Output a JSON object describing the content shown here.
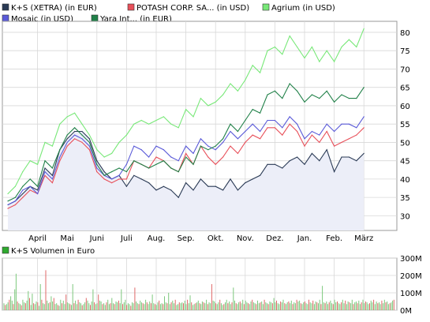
{
  "colors": {
    "background": "#ffffff",
    "plot_fill": "#eceef8",
    "grid": "#d8d8d8",
    "border": "#999999",
    "volume_up": "#7cc87c",
    "volume_down": "#e06868"
  },
  "chart_data": [
    {
      "type": "line",
      "legend_placement": "top-left",
      "grid": true,
      "x_tick_labels": [
        "April",
        "Mai",
        "Juni",
        "Juli",
        "Aug.",
        "Sep.",
        "Okt.",
        "Nov.",
        "Dez.",
        "Jan.",
        "Feb.",
        "März"
      ],
      "y_tick_labels": [
        "30",
        "35",
        "40",
        "45",
        "50",
        "55",
        "60",
        "65",
        "70",
        "75",
        "80"
      ],
      "ylim": [
        26,
        83
      ],
      "x_domain": [
        0,
        12
      ],
      "x_tick_positions": [
        1,
        2,
        3,
        4,
        5,
        6,
        7,
        8,
        9,
        10,
        11,
        12
      ],
      "y_ticks": [
        30,
        35,
        40,
        45,
        50,
        55,
        60,
        65,
        70,
        75,
        80
      ],
      "series": [
        {
          "name": "K+S (XETRA) (in EUR)",
          "color": "#2a3a55",
          "area_fill": true,
          "x": [
            0,
            0.25,
            0.5,
            0.75,
            1,
            1.25,
            1.5,
            1.75,
            2,
            2.25,
            2.5,
            2.75,
            3,
            3.25,
            3.5,
            3.75,
            4,
            4.25,
            4.5,
            4.75,
            5,
            5.25,
            5.5,
            5.75,
            6,
            6.25,
            6.5,
            6.75,
            7,
            7.25,
            7.5,
            7.75,
            8,
            8.25,
            8.5,
            8.75,
            9,
            9.25,
            9.5,
            9.75,
            10,
            10.25,
            10.5,
            10.75,
            11,
            11.25,
            11.5,
            11.75,
            12
          ],
          "values": [
            33,
            34,
            36,
            38,
            37,
            43,
            41,
            48,
            51,
            53,
            53,
            51,
            45,
            42,
            40,
            41,
            38,
            41,
            40,
            39,
            37,
            38,
            37,
            35,
            39,
            37,
            40,
            38,
            38,
            37,
            40,
            37,
            39,
            40,
            41,
            44,
            44,
            43,
            45,
            46,
            44,
            47,
            45,
            48,
            42,
            46,
            46,
            45,
            47
          ]
        },
        {
          "name": "POTASH CORP. SA... (in USD)",
          "color": "#e8505a",
          "area_fill": false,
          "x": [
            0,
            0.25,
            0.5,
            0.75,
            1,
            1.25,
            1.5,
            1.75,
            2,
            2.25,
            2.5,
            2.75,
            3,
            3.25,
            3.5,
            3.75,
            4,
            4.25,
            4.5,
            4.75,
            5,
            5.25,
            5.5,
            5.75,
            6,
            6.25,
            6.5,
            6.75,
            7,
            7.25,
            7.5,
            7.75,
            8,
            8.25,
            8.5,
            8.75,
            9,
            9.25,
            9.5,
            9.75,
            10,
            10.25,
            10.5,
            10.75,
            11,
            11.25,
            11.5,
            11.75,
            12
          ],
          "values": [
            32,
            33,
            35,
            37,
            36,
            41,
            39,
            45,
            49,
            51,
            50,
            48,
            42,
            40,
            39,
            40,
            40,
            45,
            44,
            43,
            46,
            45,
            43,
            42,
            47,
            44,
            49,
            46,
            44,
            46,
            49,
            47,
            50,
            52,
            51,
            54,
            54,
            52,
            55,
            53,
            49,
            52,
            50,
            53,
            49,
            50,
            51,
            52,
            54
          ]
        },
        {
          "name": "Agrium (in USD)",
          "color": "#78e878",
          "area_fill": false,
          "x": [
            0,
            0.25,
            0.5,
            0.75,
            1,
            1.25,
            1.5,
            1.75,
            2,
            2.25,
            2.5,
            2.75,
            3,
            3.25,
            3.5,
            3.75,
            4,
            4.25,
            4.5,
            4.75,
            5,
            5.25,
            5.5,
            5.75,
            6,
            6.25,
            6.5,
            6.75,
            7,
            7.25,
            7.5,
            7.75,
            8,
            8.25,
            8.5,
            8.75,
            9,
            9.25,
            9.5,
            9.75,
            10,
            10.25,
            10.5,
            10.75,
            11,
            11.25,
            11.5,
            11.75,
            12
          ],
          "values": [
            36,
            38,
            42,
            45,
            44,
            50,
            49,
            55,
            57,
            58,
            55,
            52,
            48,
            46,
            47,
            50,
            52,
            55,
            56,
            55,
            56,
            57,
            55,
            54,
            59,
            57,
            62,
            60,
            61,
            63,
            66,
            64,
            67,
            71,
            69,
            75,
            76,
            74,
            79,
            76,
            73,
            76,
            72,
            75,
            72,
            76,
            78,
            76,
            81
          ]
        },
        {
          "name": "Mosaic (in USD)",
          "color": "#5a5ad8",
          "area_fill": false,
          "x": [
            0,
            0.25,
            0.5,
            0.75,
            1,
            1.25,
            1.5,
            1.75,
            2,
            2.25,
            2.5,
            2.75,
            3,
            3.25,
            3.5,
            3.75,
            4,
            4.25,
            4.5,
            4.75,
            5,
            5.25,
            5.5,
            5.75,
            6,
            6.25,
            6.5,
            6.75,
            7,
            7.25,
            7.5,
            7.75,
            8,
            8.25,
            8.5,
            8.75,
            9,
            9.25,
            9.5,
            9.75,
            10,
            10.25,
            10.5,
            10.75,
            11,
            11.25,
            11.5,
            11.75,
            12
          ],
          "values": [
            33,
            34,
            37,
            38,
            36,
            42,
            40,
            46,
            50,
            52,
            51,
            49,
            43,
            41,
            40,
            41,
            44,
            49,
            48,
            46,
            49,
            48,
            46,
            45,
            49,
            47,
            51,
            49,
            48,
            50,
            53,
            51,
            53,
            55,
            53,
            56,
            56,
            54,
            57,
            55,
            51,
            53,
            52,
            55,
            53,
            55,
            55,
            54,
            57
          ]
        },
        {
          "name": "Yara Int... (in EUR)",
          "color": "#208048",
          "area_fill": false,
          "x": [
            0,
            0.25,
            0.5,
            0.75,
            1,
            1.25,
            1.5,
            1.75,
            2,
            2.25,
            2.5,
            2.75,
            3,
            3.25,
            3.5,
            3.75,
            4,
            4.25,
            4.5,
            4.75,
            5,
            5.25,
            5.5,
            5.75,
            6,
            6.25,
            6.5,
            6.75,
            7,
            7.25,
            7.5,
            7.75,
            8,
            8.25,
            8.5,
            8.75,
            9,
            9.25,
            9.5,
            9.75,
            10,
            10.25,
            10.5,
            10.75,
            11,
            11.25,
            11.5,
            11.75,
            12
          ],
          "values": [
            34,
            35,
            38,
            40,
            38,
            45,
            43,
            48,
            52,
            54,
            52,
            50,
            44,
            41,
            42,
            43,
            42,
            45,
            44,
            43,
            44,
            45,
            43,
            42,
            46,
            44,
            49,
            48,
            49,
            51,
            55,
            53,
            56,
            59,
            58,
            63,
            64,
            62,
            66,
            64,
            61,
            63,
            62,
            64,
            61,
            63,
            62,
            62,
            65
          ]
        }
      ]
    },
    {
      "type": "bar",
      "legend": "K+S Volumen in Euro",
      "legend_color": "#2faa2f",
      "y_tick_labels": [
        "0M",
        "100M",
        "200M",
        "300M"
      ],
      "ylim": [
        0,
        300
      ],
      "x_domain": [
        0,
        12
      ],
      "note_values": "daily volume bars, in millions of euro",
      "values": [
        40,
        30,
        35,
        45,
        60,
        80,
        55,
        35,
        120,
        210,
        50,
        40,
        35,
        28,
        60,
        45,
        40,
        55,
        110,
        70,
        30,
        95,
        40,
        35,
        50,
        45,
        25,
        150,
        60,
        40,
        35,
        230,
        55,
        40,
        45,
        80,
        50,
        70,
        35,
        40,
        30,
        25,
        60,
        40,
        55,
        35,
        90,
        45,
        40,
        35,
        30,
        150,
        40,
        55,
        35,
        60,
        45,
        40,
        28,
        35,
        45,
        70,
        55,
        40,
        30,
        50,
        120,
        45,
        35,
        40,
        90,
        55,
        50,
        35,
        40,
        30,
        45,
        60,
        35,
        40,
        70,
        40,
        35,
        50,
        45,
        55,
        40,
        120,
        35,
        45,
        60,
        30,
        40,
        35,
        25,
        45,
        40,
        130,
        50,
        40,
        35,
        55,
        45,
        40,
        35,
        60,
        45,
        35,
        50,
        40,
        90,
        40,
        35,
        30,
        45,
        55,
        35,
        40,
        35,
        80,
        45,
        40,
        100,
        35,
        45,
        55,
        40,
        60,
        30,
        35,
        45,
        40,
        45,
        40,
        55,
        35,
        60,
        40,
        85,
        45,
        30,
        35,
        40,
        45,
        55,
        40,
        35,
        50,
        45,
        40,
        60,
        35,
        45,
        40,
        150,
        55,
        50,
        40,
        35,
        45,
        60,
        40,
        30,
        35,
        45,
        60,
        40,
        50,
        35,
        45,
        130,
        55,
        40,
        35,
        45,
        50,
        40,
        60,
        35,
        55,
        45,
        40,
        35,
        50,
        60,
        45,
        40,
        35,
        55,
        40,
        45,
        50,
        35,
        60,
        45,
        40,
        35,
        50,
        45,
        40,
        70,
        45,
        55,
        40,
        35,
        50,
        45,
        60,
        40,
        35,
        45,
        50,
        40,
        55,
        35,
        45,
        40,
        60,
        50,
        55,
        40,
        35,
        45,
        50,
        40,
        35,
        60,
        45,
        40,
        55,
        35,
        50,
        45,
        40,
        60,
        35,
        140,
        45,
        40,
        50,
        35,
        45,
        55,
        40,
        35,
        60,
        45,
        50,
        40,
        35,
        45,
        60,
        40,
        55,
        35,
        50,
        45,
        40,
        60,
        35,
        45,
        50,
        40,
        55,
        35,
        45,
        60,
        40,
        50,
        45,
        35,
        40,
        55,
        45,
        60,
        35,
        50,
        40,
        45,
        35,
        55,
        40,
        60,
        45,
        50,
        35,
        40,
        45,
        55,
        60
      ]
    }
  ]
}
